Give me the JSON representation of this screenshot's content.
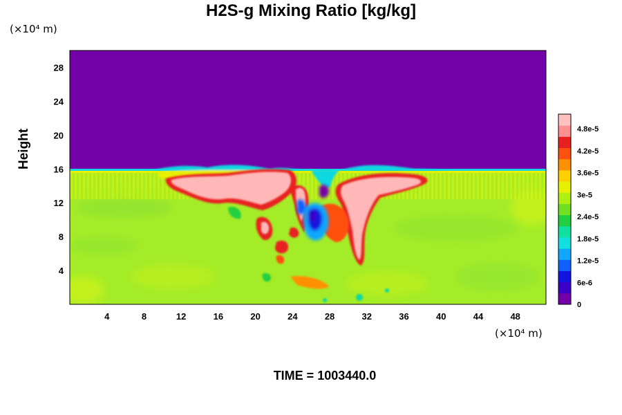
{
  "chart_data": {
    "type": "heatmap",
    "title": "H2S-g Mixing Ratio [kg/kg]",
    "ylabel": "Height",
    "x_unit": "(×10⁴ m)",
    "y_unit": "(×10⁴ m)",
    "footer": "TIME = 1003440.0",
    "xlim": [
      0,
      51.3
    ],
    "ylim": [
      0,
      30
    ],
    "x_ticks": [
      4,
      8,
      12,
      16,
      20,
      24,
      28,
      32,
      36,
      40,
      44,
      48
    ],
    "y_ticks": [
      4,
      8,
      12,
      16,
      20,
      24,
      28
    ],
    "colorbar": {
      "min": 0,
      "max": 5.2e-05,
      "tick_values": [
        0,
        6e-06,
        1.2e-05,
        1.8e-05,
        2.4e-05,
        3e-05,
        3.6e-05,
        4.2e-05,
        4.8e-05
      ],
      "tick_labels": [
        "0",
        "6e-6",
        "1.2e-5",
        "1.8e-5",
        "2.4e-5",
        "3e-5",
        "3.6e-5",
        "4.2e-5",
        "4.8e-5"
      ],
      "colors": [
        "#7400a8",
        "#3a00c8",
        "#1414e0",
        "#1060ff",
        "#10a8ff",
        "#10e0e0",
        "#10e0a0",
        "#20d040",
        "#70e020",
        "#b0f010",
        "#e8f000",
        "#ffd000",
        "#ff9000",
        "#ff5010",
        "#e82020",
        "#ff9090",
        "#ffc0c0"
      ]
    }
  }
}
